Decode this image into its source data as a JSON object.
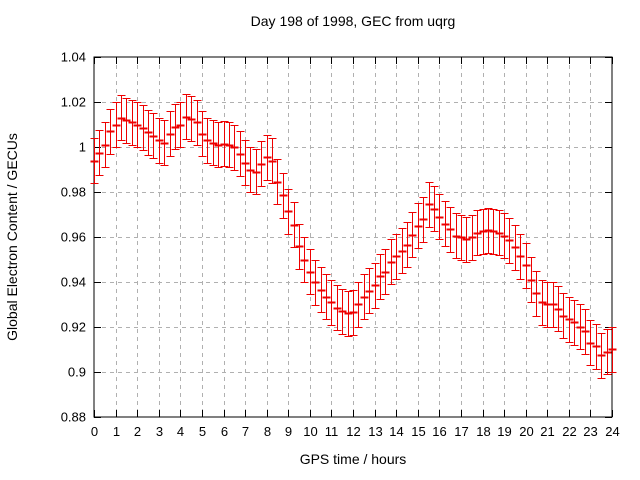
{
  "chart_data": {
    "type": "scatter",
    "style": "yerrorbars",
    "title": "Day 198 of 1998, GEC from uqrg",
    "xlabel": "GPS time / hours",
    "ylabel": "Global Electron Content / GECUs",
    "xlim": [
      0,
      24
    ],
    "ylim": [
      0.88,
      1.04
    ],
    "xticks": [
      0,
      1,
      2,
      3,
      4,
      5,
      6,
      7,
      8,
      9,
      10,
      11,
      12,
      13,
      14,
      15,
      16,
      17,
      18,
      19,
      20,
      21,
      22,
      23,
      24
    ],
    "yticks": [
      0.88,
      0.9,
      0.92,
      0.94,
      0.96,
      0.98,
      1,
      1.02,
      1.04
    ],
    "grid": "dashed-major-both",
    "legend": "none",
    "colors": {
      "series": "#ee0000",
      "grid": "#b0b0b0",
      "border": "#000000",
      "background": "#ffffff",
      "text": "#000000"
    },
    "series": [
      {
        "name": "GEC",
        "color": "#ee0000",
        "marker": "horizontal-dash",
        "yerr": 0.01,
        "x": [
          0,
          0.25,
          0.5,
          0.75,
          1,
          1.25,
          1.5,
          1.75,
          2,
          2.25,
          2.5,
          2.75,
          3,
          3.25,
          3.5,
          3.75,
          4,
          4.25,
          4.5,
          4.75,
          5,
          5.25,
          5.5,
          5.75,
          6,
          6.25,
          6.5,
          6.75,
          7,
          7.25,
          7.5,
          7.75,
          8,
          8.25,
          8.5,
          8.75,
          9,
          9.25,
          9.5,
          9.75,
          10,
          10.25,
          10.5,
          10.75,
          11,
          11.25,
          11.5,
          11.75,
          12,
          12.25,
          12.5,
          12.75,
          13,
          13.25,
          13.5,
          13.75,
          14,
          14.25,
          14.5,
          14.75,
          15,
          15.25,
          15.5,
          15.75,
          16,
          16.25,
          16.5,
          16.75,
          17,
          17.25,
          17.5,
          17.75,
          18,
          18.25,
          18.5,
          18.75,
          19,
          19.25,
          19.5,
          19.75,
          20,
          20.25,
          20.5,
          20.75,
          21,
          21.25,
          21.5,
          21.75,
          22,
          22.25,
          22.5,
          22.75,
          23,
          23.25,
          23.5,
          23.75,
          24
        ],
        "y": [
          0.994,
          0.9975,
          1.001,
          1.007,
          1.01,
          1.013,
          1.012,
          1.011,
          1.01,
          1.0085,
          1.0065,
          1.005,
          1.003,
          1.002,
          1.006,
          1.009,
          1.01,
          1.0135,
          1.0125,
          1.011,
          1.006,
          1.003,
          1.002,
          1.001,
          1.0015,
          1.001,
          1.0,
          0.997,
          0.993,
          0.99,
          0.989,
          0.9925,
          0.9955,
          0.994,
          0.9845,
          0.9785,
          0.9715,
          0.9655,
          0.956,
          0.95,
          0.9445,
          0.94,
          0.9365,
          0.9335,
          0.931,
          0.9285,
          0.927,
          0.926,
          0.9265,
          0.93,
          0.9335,
          0.936,
          0.9385,
          0.9425,
          0.9445,
          0.949,
          0.9515,
          0.954,
          0.9565,
          0.961,
          0.965,
          0.968,
          0.9745,
          0.9725,
          0.969,
          0.966,
          0.9635,
          0.9605,
          0.96,
          0.959,
          0.96,
          0.962,
          0.9625,
          0.963,
          0.9625,
          0.962,
          0.9605,
          0.9585,
          0.9555,
          0.9515,
          0.9475,
          0.941,
          0.935,
          0.931,
          0.93,
          0.93,
          0.928,
          0.925,
          0.9235,
          0.922,
          0.92,
          0.918,
          0.913,
          0.9115,
          0.9075,
          0.909,
          0.91
        ]
      }
    ]
  }
}
